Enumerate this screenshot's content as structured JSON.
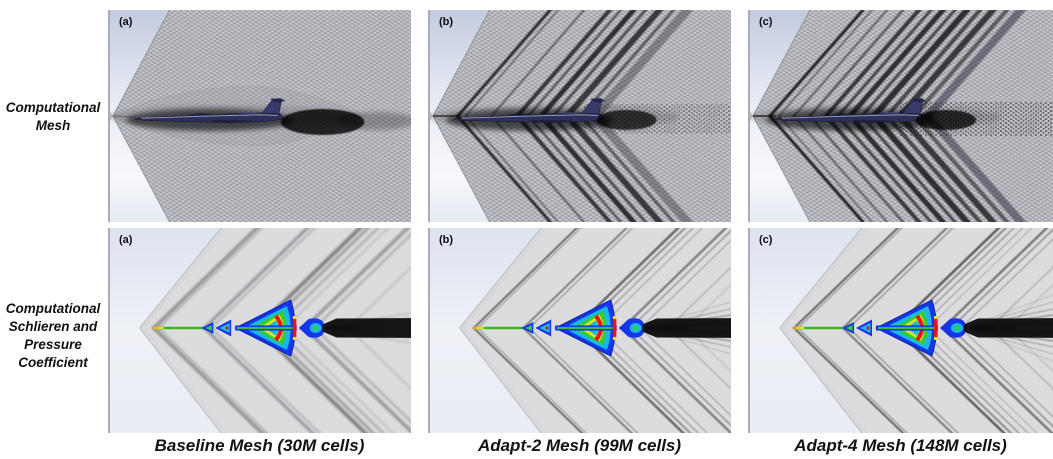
{
  "figure": {
    "row_labels": [
      {
        "id": "mesh",
        "text": "Computational\nMesh"
      },
      {
        "id": "schlieren",
        "text": "Computational\nSchlieren and\nPressure\nCoefficient"
      }
    ],
    "panel_labels": [
      "(a)",
      "(b)",
      "(c)"
    ],
    "captions": [
      "Baseline Mesh (30M cells)",
      "Adapt-2 Mesh (99M cells)",
      "Adapt-4 Mesh (148M cells)"
    ],
    "colors": {
      "cp_colormap": [
        "#1535e8",
        "#19b8e8",
        "#35cc35",
        "#d8e822",
        "#e81515"
      ],
      "mesh_background": "#c3cce0",
      "schlieren_wedge": "#dcdcde"
    }
  }
}
